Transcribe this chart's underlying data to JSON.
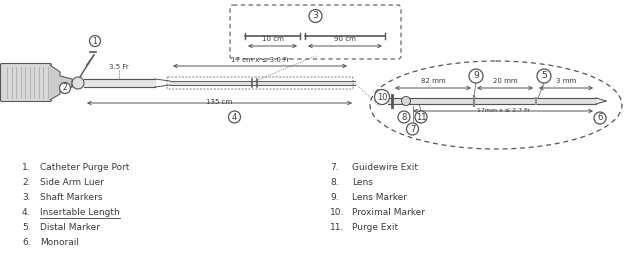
{
  "bg_color": "#ffffff",
  "text_color": "#3a3a3a",
  "line_color": "#555555",
  "legend_left": [
    [
      "1.",
      "Catheter Purge Port"
    ],
    [
      "2.",
      "Side Arm Luer"
    ],
    [
      "3.",
      "Shaft Markers"
    ],
    [
      "4.",
      "Insertable Length"
    ],
    [
      "5.",
      "Distal Marker"
    ],
    [
      "6.",
      "Monorail"
    ]
  ],
  "legend_right": [
    [
      "7.",
      "Guidewire Exit"
    ],
    [
      "8.",
      "Lens"
    ],
    [
      "9.",
      "Lens Marker"
    ],
    [
      "10.",
      "Proximal Marker"
    ],
    [
      "11.",
      "Purge Exit"
    ]
  ],
  "fig_width": 6.24,
  "fig_height": 2.72
}
